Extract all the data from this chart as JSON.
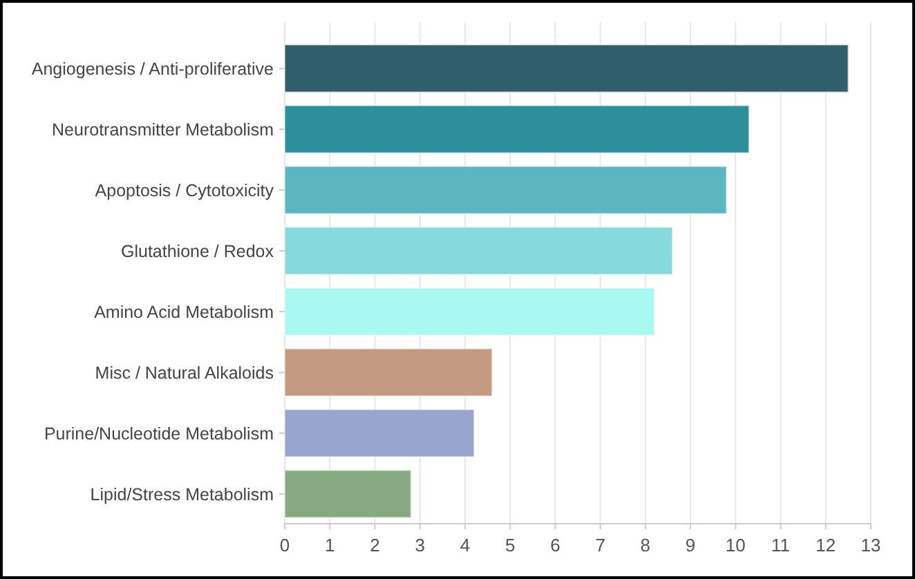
{
  "chart_data": {
    "type": "bar",
    "orientation": "horizontal",
    "categories": [
      "Angiogenesis / Anti-proliferative",
      "Neurotransmitter Metabolism",
      "Apoptosis / Cytotoxicity",
      "Glutathione / Redox",
      "Amino Acid Metabolism",
      "Misc / Natural Alkaloids",
      "Purine/Nucleotide Metabolism",
      "Lipid/Stress Metabolism"
    ],
    "values": [
      12.5,
      10.3,
      9.8,
      8.6,
      8.2,
      4.6,
      4.2,
      2.8
    ],
    "colors": [
      "#305f6b",
      "#2e8f9c",
      "#5bb7bf",
      "#86d9dc",
      "#aaf8f2",
      "#c49a80",
      "#97a5cf",
      "#88aa82"
    ],
    "xlim": [
      0,
      13
    ],
    "xticks": [
      0,
      1,
      2,
      3,
      4,
      5,
      6,
      7,
      8,
      9,
      10,
      11,
      12,
      13
    ],
    "grid": "x"
  }
}
